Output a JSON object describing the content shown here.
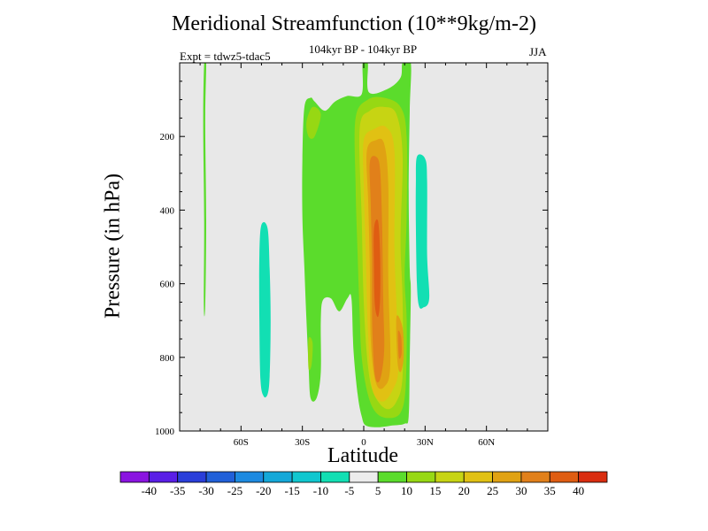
{
  "chart_data": {
    "type": "heatmap",
    "title": "Meridional Streamfunction (10**9kg/m-2)",
    "subtitle": "104kyr BP - 104kyr BP",
    "left_note": "Expt = tdwz5-tdac5",
    "right_note": "JJA",
    "xlabel": "Latitude",
    "ylabel": "Pressure (in hPa)",
    "xlim": [
      -90,
      90
    ],
    "ylim": [
      1000,
      0
    ],
    "x_ticks": [
      {
        "value": -60,
        "label": "60S"
      },
      {
        "value": -30,
        "label": "30S"
      },
      {
        "value": 0,
        "label": "0"
      },
      {
        "value": 30,
        "label": "30N"
      },
      {
        "value": 60,
        "label": "60N"
      }
    ],
    "y_ticks": [
      {
        "value": 200,
        "label": "200"
      },
      {
        "value": 400,
        "label": "400"
      },
      {
        "value": 600,
        "label": "600"
      },
      {
        "value": 800,
        "label": "800"
      },
      {
        "value": 1000,
        "label": "1000"
      }
    ],
    "background_color": "#e8e8e8",
    "colorbar": {
      "levels": [
        "-40",
        "-35",
        "-30",
        "-25",
        "-20",
        "-15",
        "-10",
        "-5",
        "5",
        "10",
        "15",
        "20",
        "25",
        "30",
        "35",
        "40"
      ],
      "colors": [
        "#8a13e0",
        "#5a1ee6",
        "#2a3ed9",
        "#2160d8",
        "#1d8ae0",
        "#14a8d8",
        "#10c7cf",
        "#12dfb3",
        "#ececec",
        "#5bdc2c",
        "#97d813",
        "#c7d413",
        "#e1c113",
        "#e0a213",
        "#e1801a",
        "#df5d12",
        "#d92d10"
      ]
    },
    "contours": [
      {
        "color": "#5bdc2c",
        "points": [
          [
            -78,
            0
          ],
          [
            -77,
            0
          ],
          [
            -77.5,
            160
          ],
          [
            -77,
            430
          ],
          [
            -77.5,
            660
          ],
          [
            -78.2,
            660
          ],
          [
            -78,
            430
          ],
          [
            -78.5,
            160
          ]
        ]
      },
      {
        "color": "#12dfb3",
        "points": [
          [
            -50,
            440
          ],
          [
            -47,
            450
          ],
          [
            -46,
            560
          ],
          [
            -45.5,
            700
          ],
          [
            -46,
            850
          ],
          [
            -47,
            900
          ],
          [
            -49,
            905
          ],
          [
            -50.5,
            860
          ],
          [
            -51,
            700
          ],
          [
            -51,
            520
          ]
        ]
      },
      {
        "color": "#5bdc2c",
        "points": [
          [
            -29,
            120
          ],
          [
            -26,
            95
          ],
          [
            -24,
            105
          ],
          [
            -19,
            130
          ],
          [
            -14,
            105
          ],
          [
            -8,
            90
          ],
          [
            -1,
            85
          ],
          [
            -0.5,
            0
          ],
          [
            2,
            0
          ],
          [
            2.5,
            80
          ],
          [
            12,
            70
          ],
          [
            18,
            40
          ],
          [
            19,
            0
          ],
          [
            23,
            0
          ],
          [
            22.5,
            130
          ],
          [
            22,
            350
          ],
          [
            22.5,
            560
          ],
          [
            23,
            620
          ],
          [
            22.5,
            800
          ],
          [
            22,
            960
          ],
          [
            20,
            980
          ],
          [
            14,
            985
          ],
          [
            7,
            990
          ],
          [
            1,
            985
          ],
          [
            -1,
            960
          ],
          [
            -3,
            900
          ],
          [
            -5,
            780
          ],
          [
            -6,
            640
          ],
          [
            -8,
            640
          ],
          [
            -12,
            675
          ],
          [
            -16,
            640
          ],
          [
            -20,
            645
          ],
          [
            -21,
            700
          ],
          [
            -21,
            840
          ],
          [
            -23,
            910
          ],
          [
            -26,
            910
          ],
          [
            -27,
            820
          ],
          [
            -28,
            700
          ],
          [
            -29,
            560
          ],
          [
            -30,
            420
          ],
          [
            -30,
            260
          ]
        ]
      },
      {
        "color": "#12dfb3",
        "points": [
          [
            26,
            255
          ],
          [
            30,
            260
          ],
          [
            31,
            320
          ],
          [
            31,
            520
          ],
          [
            32,
            640
          ],
          [
            29,
            665
          ],
          [
            27,
            660
          ],
          [
            26,
            600
          ],
          [
            25.5,
            440
          ],
          [
            25.5,
            330
          ]
        ]
      },
      {
        "color": "#97d813",
        "points": [
          [
            -28,
            160
          ],
          [
            -25,
            120
          ],
          [
            -21,
            140
          ],
          [
            -24,
            200
          ],
          [
            -27,
            200
          ]
        ]
      },
      {
        "color": "#97d813",
        "points": [
          [
            -27,
            750
          ],
          [
            -25,
            760
          ],
          [
            -25.5,
            820
          ],
          [
            -27,
            830
          ]
        ]
      },
      {
        "color": "#97d813",
        "points": [
          [
            -4,
            150
          ],
          [
            2,
            100
          ],
          [
            10,
            95
          ],
          [
            18,
            120
          ],
          [
            21,
            200
          ],
          [
            21,
            420
          ],
          [
            20,
            580
          ],
          [
            21,
            700
          ],
          [
            20.5,
            880
          ],
          [
            18,
            950
          ],
          [
            12,
            965
          ],
          [
            6,
            950
          ],
          [
            2,
            900
          ],
          [
            -1,
            800
          ],
          [
            -2,
            680
          ],
          [
            -3,
            520
          ],
          [
            -4,
            330
          ]
        ]
      },
      {
        "color": "#c7d413",
        "points": [
          [
            -2,
            180
          ],
          [
            3,
            130
          ],
          [
            10,
            120
          ],
          [
            16,
            140
          ],
          [
            19,
            250
          ],
          [
            18,
            480
          ],
          [
            19,
            640
          ],
          [
            19,
            850
          ],
          [
            16,
            920
          ],
          [
            11,
            940
          ],
          [
            5,
            900
          ],
          [
            2,
            820
          ],
          [
            0,
            650
          ],
          [
            -1,
            420
          ]
        ]
      },
      {
        "color": "#e1c113",
        "points": [
          [
            0,
            210
          ],
          [
            5,
            180
          ],
          [
            11,
            175
          ],
          [
            15,
            240
          ],
          [
            15,
            500
          ],
          [
            16,
            660
          ],
          [
            17,
            830
          ],
          [
            14,
            890
          ],
          [
            9,
            920
          ],
          [
            4,
            880
          ],
          [
            2,
            720
          ],
          [
            1,
            520
          ],
          [
            0,
            330
          ]
        ]
      },
      {
        "color": "#e0a213",
        "points": [
          [
            1.5,
            240
          ],
          [
            6,
            210
          ],
          [
            10,
            220
          ],
          [
            12,
            330
          ],
          [
            12,
            580
          ],
          [
            13,
            820
          ],
          [
            10,
            880
          ],
          [
            6,
            870
          ],
          [
            3.5,
            760
          ],
          [
            3,
            560
          ],
          [
            2.2,
            380
          ]
        ]
      },
      {
        "color": "#e1801a",
        "points": [
          [
            3,
            270
          ],
          [
            6,
            255
          ],
          [
            8,
            290
          ],
          [
            9,
            440
          ],
          [
            9.5,
            640
          ],
          [
            10,
            780
          ],
          [
            8,
            860
          ],
          [
            5.5,
            850
          ],
          [
            4.2,
            720
          ],
          [
            4,
            520
          ],
          [
            3.4,
            380
          ]
        ]
      },
      {
        "color": "#df5d12",
        "points": [
          [
            5,
            450
          ],
          [
            7,
            430
          ],
          [
            8,
            520
          ],
          [
            8,
            640
          ],
          [
            7,
            690
          ],
          [
            5.5,
            660
          ],
          [
            5,
            560
          ]
        ]
      },
      {
        "color": "#e0a213",
        "points": [
          [
            16,
            690
          ],
          [
            19,
            720
          ],
          [
            19.5,
            800
          ],
          [
            18,
            840
          ],
          [
            16.5,
            810
          ]
        ]
      },
      {
        "color": "#e1801a",
        "points": [
          [
            16.8,
            730
          ],
          [
            18.3,
            745
          ],
          [
            18.5,
            790
          ],
          [
            17.2,
            800
          ]
        ]
      }
    ]
  }
}
